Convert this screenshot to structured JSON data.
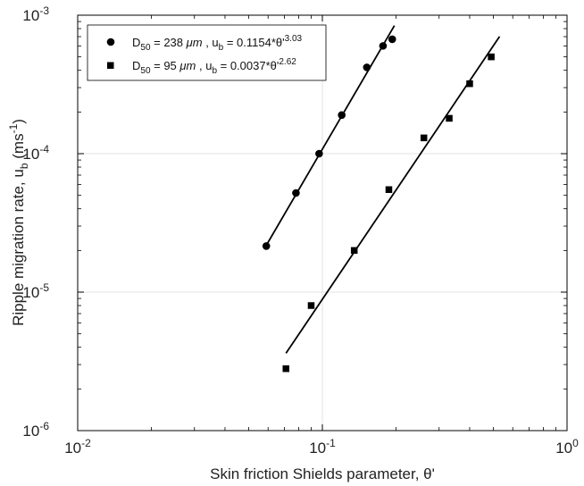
{
  "chart_data": {
    "type": "scatter",
    "xscale": "log",
    "yscale": "log",
    "xlim": [
      0.01,
      1
    ],
    "ylim": [
      1e-06,
      0.001
    ],
    "grid": true,
    "legend_position": "top-left",
    "xlabel": "Skin friction Shields parameter, θ'",
    "ylabel": "Ripple migration rate, u",
    "ylabel_sub": "b",
    "ylabel_unit": " (ms",
    "ylabel_unit_sup": "-1",
    "ylabel_unit_close": ")",
    "x_ticks": [
      {
        "value": 0.01,
        "base": "10",
        "exp": "-2"
      },
      {
        "value": 0.1,
        "base": "10",
        "exp": "-1"
      },
      {
        "value": 1,
        "base": "10",
        "exp": "0"
      }
    ],
    "y_ticks": [
      {
        "value": 1e-06,
        "base": "10",
        "exp": "-6"
      },
      {
        "value": 1e-05,
        "base": "10",
        "exp": "-5"
      },
      {
        "value": 0.0001,
        "base": "10",
        "exp": "-4"
      },
      {
        "value": 0.001,
        "base": "10",
        "exp": "-3"
      }
    ],
    "series": [
      {
        "marker": "circle",
        "color": "#000000",
        "legend": {
          "d": "D",
          "d_sub": "50",
          "size": " = 238 ",
          "unit": "μm",
          "ub": "  , u",
          "ub_sub": "b",
          "eq": " = 0.1154*θ'",
          "exp": "3.03"
        },
        "x": [
          0.059,
          0.078,
          0.097,
          0.12,
          0.152,
          0.177,
          0.193
        ],
        "y": [
          2.15e-05,
          5.2e-05,
          0.0001,
          0.00019,
          0.00042,
          0.0006,
          0.00067
        ],
        "fit": {
          "coef": 0.1154,
          "exponent": 3.03,
          "x_range": [
            0.059,
            0.197
          ]
        }
      },
      {
        "marker": "square",
        "color": "#000000",
        "legend": {
          "d": "D",
          "d_sub": "50",
          "size": " =   95 ",
          "unit": "μm",
          "ub": "  , u",
          "ub_sub": "b",
          "eq": " = 0.0037*θ'",
          "exp": "2.62"
        },
        "x": [
          0.071,
          0.09,
          0.135,
          0.187,
          0.26,
          0.33,
          0.4,
          0.49
        ],
        "y": [
          2.8e-06,
          8e-06,
          2e-05,
          5.5e-05,
          0.00013,
          0.00018,
          0.00032,
          0.0005
        ],
        "fit": {
          "coef": 0.0037,
          "exponent": 2.62,
          "x_range": [
            0.071,
            0.53
          ]
        }
      }
    ]
  }
}
